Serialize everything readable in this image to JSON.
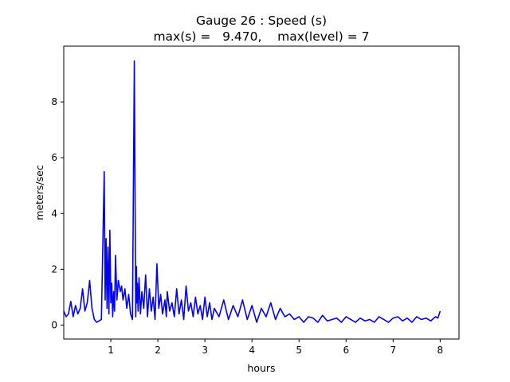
{
  "chart_data": {
    "type": "line",
    "title": "Gauge 26 : Speed (s)",
    "subtitle": "max(s) =   9.470,    max(level) = 7",
    "xlabel": "hours",
    "ylabel": "meters/sec",
    "xlim": [
      0.0,
      8.4
    ],
    "ylim": [
      -0.5,
      10.0
    ],
    "xticks": [
      1,
      2,
      3,
      4,
      5,
      6,
      7,
      8
    ],
    "yticks": [
      0,
      2,
      4,
      6,
      8
    ],
    "grid": false,
    "series": [
      {
        "color": "#0000ff",
        "x": [
          0.0,
          0.05,
          0.1,
          0.15,
          0.2,
          0.25,
          0.3,
          0.35,
          0.4,
          0.45,
          0.5,
          0.55,
          0.6,
          0.65,
          0.7,
          0.75,
          0.8,
          0.85,
          0.86,
          0.88,
          0.9,
          0.92,
          0.94,
          0.96,
          0.98,
          1.0,
          1.02,
          1.04,
          1.06,
          1.08,
          1.1,
          1.13,
          1.16,
          1.2,
          1.23,
          1.26,
          1.3,
          1.34,
          1.38,
          1.42,
          1.46,
          1.5,
          1.53,
          1.545,
          1.555,
          1.565,
          1.58,
          1.6,
          1.63,
          1.66,
          1.7,
          1.74,
          1.78,
          1.82,
          1.86,
          1.9,
          1.94,
          1.98,
          2.02,
          2.06,
          2.1,
          2.15,
          2.18,
          2.2,
          2.25,
          2.3,
          2.35,
          2.4,
          2.45,
          2.5,
          2.55,
          2.6,
          2.65,
          2.7,
          2.75,
          2.8,
          2.85,
          2.9,
          2.95,
          3.0,
          3.05,
          3.1,
          3.15,
          3.2,
          3.3,
          3.4,
          3.5,
          3.6,
          3.7,
          3.8,
          3.9,
          4.0,
          4.1,
          4.2,
          4.3,
          4.4,
          4.5,
          4.6,
          4.7,
          4.8,
          4.9,
          5.0,
          5.1,
          5.2,
          5.3,
          5.4,
          5.5,
          5.6,
          5.7,
          5.8,
          5.9,
          6.0,
          6.1,
          6.2,
          6.3,
          6.4,
          6.5,
          6.6,
          6.7,
          6.8,
          6.9,
          7.0,
          7.1,
          7.2,
          7.3,
          7.4,
          7.5,
          7.6,
          7.7,
          7.8,
          7.9,
          7.95,
          8.0
        ],
        "y": [
          0.5,
          0.3,
          0.4,
          0.85,
          0.3,
          0.7,
          0.4,
          0.6,
          1.3,
          0.5,
          0.8,
          1.6,
          0.6,
          0.2,
          0.1,
          0.15,
          0.2,
          4.6,
          5.5,
          0.9,
          3.1,
          0.6,
          2.8,
          0.4,
          3.4,
          0.8,
          1.5,
          0.3,
          1.2,
          0.5,
          2.5,
          0.9,
          1.6,
          1.2,
          1.4,
          0.9,
          1.3,
          0.6,
          1.1,
          0.4,
          0.2,
          9.47,
          0.3,
          2.1,
          0.8,
          1.5,
          0.5,
          1.7,
          0.4,
          1.2,
          0.6,
          1.8,
          0.3,
          1.3,
          0.5,
          1.0,
          0.2,
          2.2,
          0.6,
          1.1,
          0.4,
          0.9,
          0.3,
          1.2,
          0.5,
          0.8,
          0.3,
          1.3,
          0.4,
          0.9,
          0.2,
          1.4,
          0.5,
          0.8,
          0.3,
          1.0,
          0.4,
          0.7,
          0.2,
          1.0,
          0.3,
          0.8,
          0.2,
          0.6,
          0.3,
          0.9,
          0.2,
          0.7,
          0.3,
          0.9,
          0.2,
          0.7,
          0.1,
          0.6,
          0.3,
          0.8,
          0.2,
          0.6,
          0.3,
          0.4,
          0.2,
          0.3,
          0.1,
          0.3,
          0.25,
          0.1,
          0.35,
          0.15,
          0.2,
          0.25,
          0.1,
          0.3,
          0.2,
          0.1,
          0.25,
          0.15,
          0.2,
          0.1,
          0.3,
          0.2,
          0.1,
          0.25,
          0.3,
          0.15,
          0.25,
          0.1,
          0.3,
          0.2,
          0.25,
          0.15,
          0.3,
          0.25,
          0.5
        ]
      }
    ]
  }
}
